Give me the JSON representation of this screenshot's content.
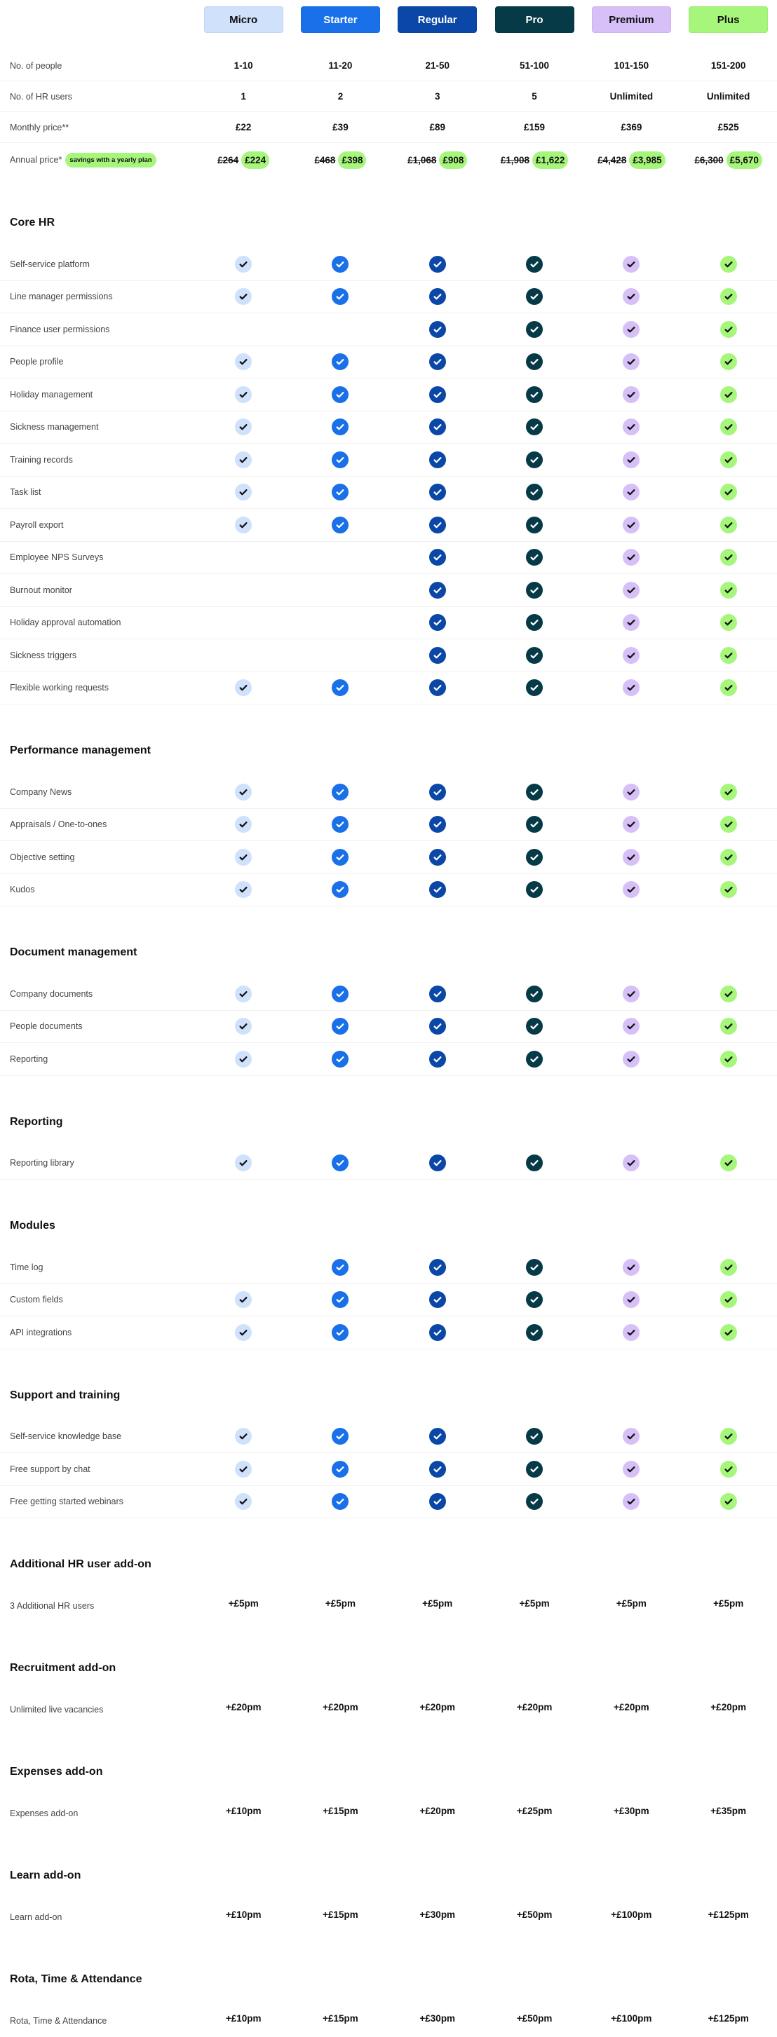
{
  "plans": [
    {
      "name": "Micro",
      "bg": "#cfe1fb",
      "fg": "#111111"
    },
    {
      "name": "Starter",
      "bg": "#1a70e8",
      "fg": "#ffffff"
    },
    {
      "name": "Regular",
      "bg": "#0a47a6",
      "fg": "#ffffff"
    },
    {
      "name": "Pro",
      "bg": "#063a47",
      "fg": "#ffffff"
    },
    {
      "name": "Premium",
      "bg": "#d7bff8",
      "fg": "#111111"
    },
    {
      "name": "Plus",
      "bg": "#a6f67c",
      "fg": "#111111"
    }
  ],
  "info": {
    "people": {
      "label": "No. of people",
      "values": [
        "1-10",
        "11-20",
        "21-50",
        "51-100",
        "101-150",
        "151-200"
      ]
    },
    "hr_users": {
      "label": "No. of HR users",
      "values": [
        "1",
        "2",
        "3",
        "5",
        "Unlimited",
        "Unlimited"
      ]
    },
    "monthly": {
      "label": "Monthly price**",
      "values": [
        "£22",
        "£39",
        "£89",
        "£159",
        "£369",
        "£525"
      ]
    },
    "annual": {
      "label": "Annual price*",
      "badge": "savings with a yearly plan",
      "old": [
        "£264",
        "£468",
        "£1,068",
        "£1,908",
        "£4,428",
        "£6,300"
      ],
      "new": [
        "£224",
        "£398",
        "£908",
        "£1,622",
        "£3,985",
        "£5,670"
      ]
    }
  },
  "sections": [
    {
      "title": "Core HR",
      "rows": [
        {
          "label": "Self-service platform",
          "checks": [
            1,
            1,
            1,
            1,
            1,
            1
          ]
        },
        {
          "label": "Line manager permissions",
          "checks": [
            1,
            1,
            1,
            1,
            1,
            1
          ]
        },
        {
          "label": "Finance user permissions",
          "checks": [
            0,
            0,
            1,
            1,
            1,
            1
          ]
        },
        {
          "label": "People profile",
          "checks": [
            1,
            1,
            1,
            1,
            1,
            1
          ]
        },
        {
          "label": "Holiday management",
          "checks": [
            1,
            1,
            1,
            1,
            1,
            1
          ]
        },
        {
          "label": "Sickness management",
          "checks": [
            1,
            1,
            1,
            1,
            1,
            1
          ]
        },
        {
          "label": "Training records",
          "checks": [
            1,
            1,
            1,
            1,
            1,
            1
          ]
        },
        {
          "label": "Task list",
          "checks": [
            1,
            1,
            1,
            1,
            1,
            1
          ]
        },
        {
          "label": "Payroll export",
          "checks": [
            1,
            1,
            1,
            1,
            1,
            1
          ]
        },
        {
          "label": "Employee NPS Surveys",
          "checks": [
            0,
            0,
            1,
            1,
            1,
            1
          ]
        },
        {
          "label": "Burnout monitor",
          "checks": [
            0,
            0,
            1,
            1,
            1,
            1
          ]
        },
        {
          "label": "Holiday approval automation",
          "checks": [
            0,
            0,
            1,
            1,
            1,
            1
          ]
        },
        {
          "label": "Sickness triggers",
          "checks": [
            0,
            0,
            1,
            1,
            1,
            1
          ]
        },
        {
          "label": "Flexible working requests",
          "checks": [
            1,
            1,
            1,
            1,
            1,
            1
          ]
        }
      ]
    },
    {
      "title": "Performance management",
      "rows": [
        {
          "label": "Company News",
          "checks": [
            1,
            1,
            1,
            1,
            1,
            1
          ]
        },
        {
          "label": "Appraisals / One-to-ones",
          "checks": [
            1,
            1,
            1,
            1,
            1,
            1
          ]
        },
        {
          "label": "Objective setting",
          "checks": [
            1,
            1,
            1,
            1,
            1,
            1
          ]
        },
        {
          "label": "Kudos",
          "checks": [
            1,
            1,
            1,
            1,
            1,
            1
          ]
        }
      ]
    },
    {
      "title": "Document management",
      "rows": [
        {
          "label": "Company documents",
          "checks": [
            1,
            1,
            1,
            1,
            1,
            1
          ]
        },
        {
          "label": "People documents",
          "checks": [
            1,
            1,
            1,
            1,
            1,
            1
          ]
        },
        {
          "label": "Reporting",
          "checks": [
            1,
            1,
            1,
            1,
            1,
            1
          ]
        }
      ]
    },
    {
      "title": "Reporting",
      "rows": [
        {
          "label": "Reporting library",
          "checks": [
            1,
            1,
            1,
            1,
            1,
            1
          ]
        }
      ]
    },
    {
      "title": "Modules",
      "rows": [
        {
          "label": "Time log",
          "checks": [
            0,
            1,
            1,
            1,
            1,
            1
          ]
        },
        {
          "label": "Custom fields",
          "checks": [
            1,
            1,
            1,
            1,
            1,
            1
          ]
        },
        {
          "label": "API integrations",
          "checks": [
            1,
            1,
            1,
            1,
            1,
            1
          ]
        }
      ]
    },
    {
      "title": "Support and training",
      "rows": [
        {
          "label": "Self-service knowledge base",
          "checks": [
            1,
            1,
            1,
            1,
            1,
            1
          ]
        },
        {
          "label": "Free support by chat",
          "checks": [
            1,
            1,
            1,
            1,
            1,
            1
          ]
        },
        {
          "label": "Free getting started webinars",
          "checks": [
            1,
            1,
            1,
            1,
            1,
            1
          ]
        }
      ]
    },
    {
      "title": "Additional HR user add-on",
      "rows": [
        {
          "label": "3 Additional HR users",
          "values": [
            "+£5pm",
            "+£5pm",
            "+£5pm",
            "+£5pm",
            "+£5pm",
            "+£5pm"
          ]
        }
      ]
    },
    {
      "title": "Recruitment add-on",
      "rows": [
        {
          "label": "Unlimited live vacancies",
          "values": [
            "+£20pm",
            "+£20pm",
            "+£20pm",
            "+£20pm",
            "+£20pm",
            "+£20pm"
          ]
        }
      ]
    },
    {
      "title": "Expenses add-on",
      "rows": [
        {
          "label": "Expenses add-on",
          "values": [
            "+£10pm",
            "+£15pm",
            "+£20pm",
            "+£25pm",
            "+£30pm",
            "+£35pm"
          ]
        }
      ]
    },
    {
      "title": "Learn add-on",
      "rows": [
        {
          "label": "Learn add-on",
          "values": [
            "+£10pm",
            "+£15pm",
            "+£30pm",
            "+£50pm",
            "+£100pm",
            "+£125pm"
          ]
        }
      ]
    },
    {
      "title": "Rota, Time & Attendance",
      "rows": [
        {
          "label": "Rota, Time & Attendance",
          "values": [
            "+£10pm",
            "+£15pm",
            "+£30pm",
            "+£50pm",
            "+£100pm",
            "+£125pm"
          ]
        }
      ]
    }
  ]
}
